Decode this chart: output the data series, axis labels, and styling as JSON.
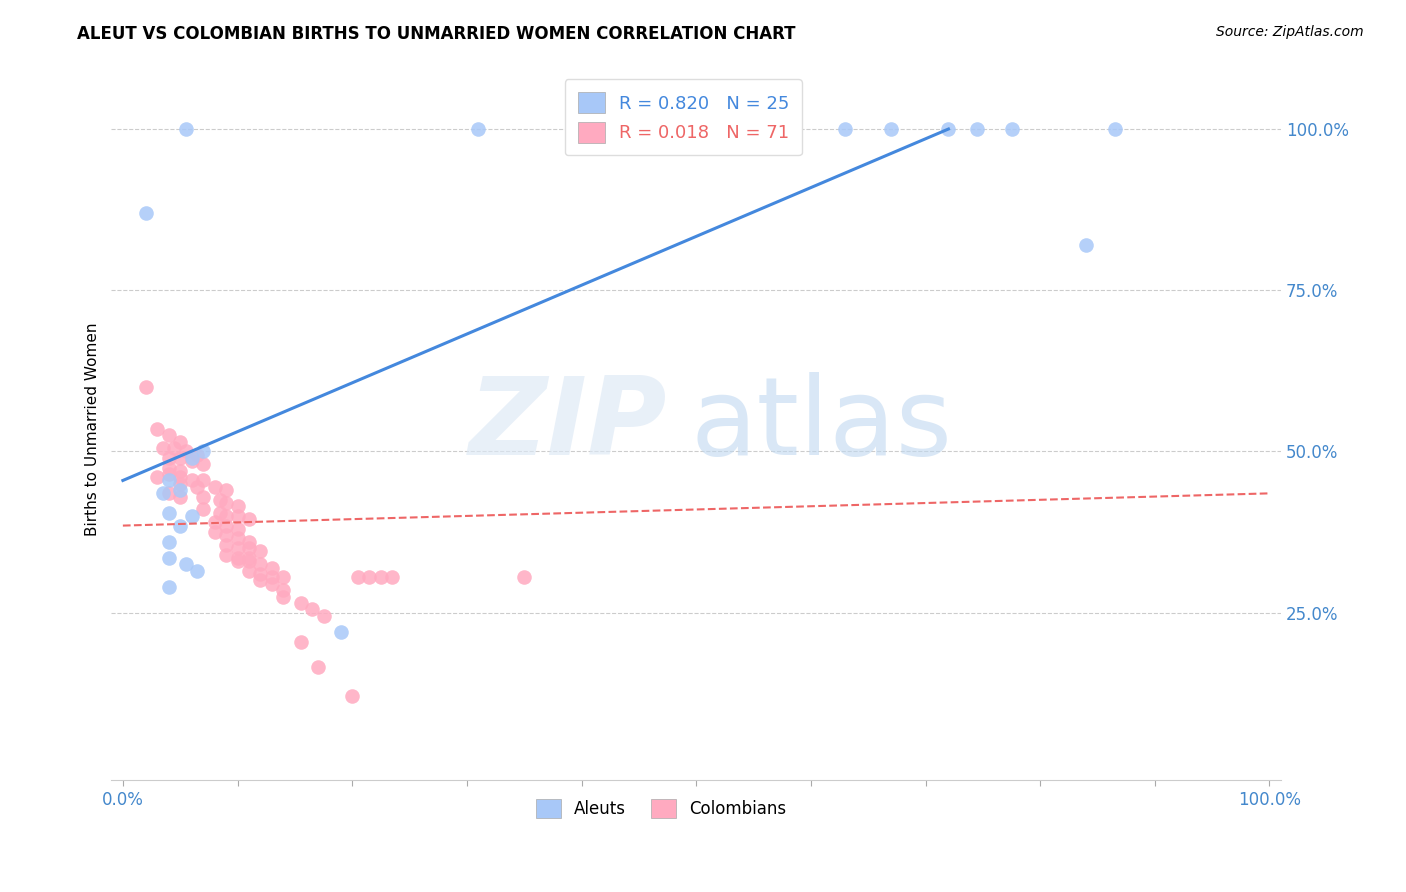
{
  "title": "ALEUT VS COLOMBIAN BIRTHS TO UNMARRIED WOMEN CORRELATION CHART",
  "source": "Source: ZipAtlas.com",
  "ylabel": "Births to Unmarried Women",
  "aleut_r": 0.82,
  "aleut_n": 25,
  "colombian_r": 0.018,
  "colombian_n": 71,
  "aleut_color": "#a8c8f8",
  "colombian_color": "#ffaac0",
  "aleut_line_color": "#4488dd",
  "colombian_line_color": "#ee6666",
  "tick_color": "#4488cc",
  "grid_color": "#cccccc",
  "aleut_line": [
    [
      0.0,
      0.455
    ],
    [
      0.72,
      1.0
    ]
  ],
  "colombian_line": [
    [
      0.0,
      0.385
    ],
    [
      1.0,
      0.435
    ]
  ],
  "aleut_points": [
    [
      0.02,
      0.87
    ],
    [
      0.055,
      1.0
    ],
    [
      0.31,
      1.0
    ],
    [
      0.06,
      0.49
    ],
    [
      0.07,
      0.5
    ],
    [
      0.04,
      0.455
    ],
    [
      0.05,
      0.44
    ],
    [
      0.035,
      0.435
    ],
    [
      0.04,
      0.405
    ],
    [
      0.06,
      0.4
    ],
    [
      0.05,
      0.385
    ],
    [
      0.04,
      0.36
    ],
    [
      0.04,
      0.335
    ],
    [
      0.055,
      0.325
    ],
    [
      0.065,
      0.315
    ],
    [
      0.04,
      0.29
    ],
    [
      0.19,
      0.22
    ],
    [
      0.55,
      1.0
    ],
    [
      0.63,
      1.0
    ],
    [
      0.67,
      1.0
    ],
    [
      0.72,
      1.0
    ],
    [
      0.745,
      1.0
    ],
    [
      0.775,
      1.0
    ],
    [
      0.84,
      0.82
    ],
    [
      0.865,
      1.0
    ]
  ],
  "colombian_points": [
    [
      0.02,
      0.6
    ],
    [
      0.03,
      0.535
    ],
    [
      0.04,
      0.525
    ],
    [
      0.05,
      0.515
    ],
    [
      0.035,
      0.505
    ],
    [
      0.045,
      0.505
    ],
    [
      0.055,
      0.5
    ],
    [
      0.065,
      0.495
    ],
    [
      0.04,
      0.49
    ],
    [
      0.05,
      0.49
    ],
    [
      0.06,
      0.485
    ],
    [
      0.07,
      0.48
    ],
    [
      0.04,
      0.475
    ],
    [
      0.05,
      0.47
    ],
    [
      0.04,
      0.465
    ],
    [
      0.03,
      0.46
    ],
    [
      0.05,
      0.46
    ],
    [
      0.06,
      0.455
    ],
    [
      0.07,
      0.455
    ],
    [
      0.05,
      0.45
    ],
    [
      0.065,
      0.445
    ],
    [
      0.08,
      0.445
    ],
    [
      0.09,
      0.44
    ],
    [
      0.04,
      0.435
    ],
    [
      0.05,
      0.43
    ],
    [
      0.07,
      0.43
    ],
    [
      0.085,
      0.425
    ],
    [
      0.09,
      0.42
    ],
    [
      0.1,
      0.415
    ],
    [
      0.07,
      0.41
    ],
    [
      0.085,
      0.405
    ],
    [
      0.09,
      0.4
    ],
    [
      0.1,
      0.4
    ],
    [
      0.11,
      0.395
    ],
    [
      0.08,
      0.39
    ],
    [
      0.09,
      0.385
    ],
    [
      0.1,
      0.38
    ],
    [
      0.08,
      0.375
    ],
    [
      0.09,
      0.37
    ],
    [
      0.1,
      0.365
    ],
    [
      0.11,
      0.36
    ],
    [
      0.09,
      0.355
    ],
    [
      0.1,
      0.35
    ],
    [
      0.11,
      0.35
    ],
    [
      0.12,
      0.345
    ],
    [
      0.09,
      0.34
    ],
    [
      0.1,
      0.335
    ],
    [
      0.11,
      0.335
    ],
    [
      0.1,
      0.33
    ],
    [
      0.11,
      0.33
    ],
    [
      0.12,
      0.325
    ],
    [
      0.13,
      0.32
    ],
    [
      0.11,
      0.315
    ],
    [
      0.12,
      0.31
    ],
    [
      0.13,
      0.305
    ],
    [
      0.14,
      0.305
    ],
    [
      0.12,
      0.3
    ],
    [
      0.13,
      0.295
    ],
    [
      0.14,
      0.285
    ],
    [
      0.14,
      0.275
    ],
    [
      0.155,
      0.265
    ],
    [
      0.165,
      0.255
    ],
    [
      0.175,
      0.245
    ],
    [
      0.205,
      0.305
    ],
    [
      0.215,
      0.305
    ],
    [
      0.225,
      0.305
    ],
    [
      0.235,
      0.305
    ],
    [
      0.35,
      0.305
    ],
    [
      0.155,
      0.205
    ],
    [
      0.17,
      0.165
    ],
    [
      0.2,
      0.12
    ]
  ]
}
